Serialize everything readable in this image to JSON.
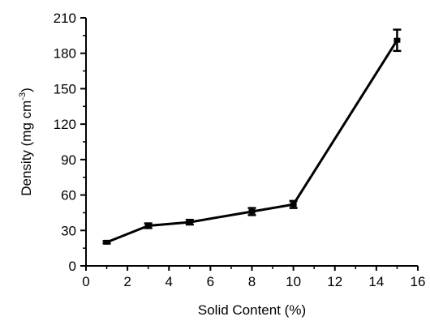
{
  "chart_data": {
    "type": "line",
    "title": "",
    "xlabel": "Solid Content (%)",
    "ylabel_main": "Density (mg cm",
    "ylabel_exp": "-3",
    "ylabel_close": ")",
    "xlim": [
      0,
      16
    ],
    "ylim": [
      0,
      210
    ],
    "xticks": [
      "0",
      "2",
      "4",
      "6",
      "8",
      "10",
      "12",
      "14",
      "16"
    ],
    "yticks": [
      "0",
      "30",
      "60",
      "90",
      "120",
      "150",
      "180",
      "210"
    ],
    "grid": false,
    "legend": "none",
    "line_color": "#000000",
    "series": [
      {
        "x": [
          1,
          3,
          5,
          8,
          10,
          15
        ],
        "y": [
          20,
          34,
          37,
          46,
          52,
          191
        ],
        "err": [
          1,
          2,
          2,
          3,
          3,
          9
        ]
      }
    ]
  }
}
